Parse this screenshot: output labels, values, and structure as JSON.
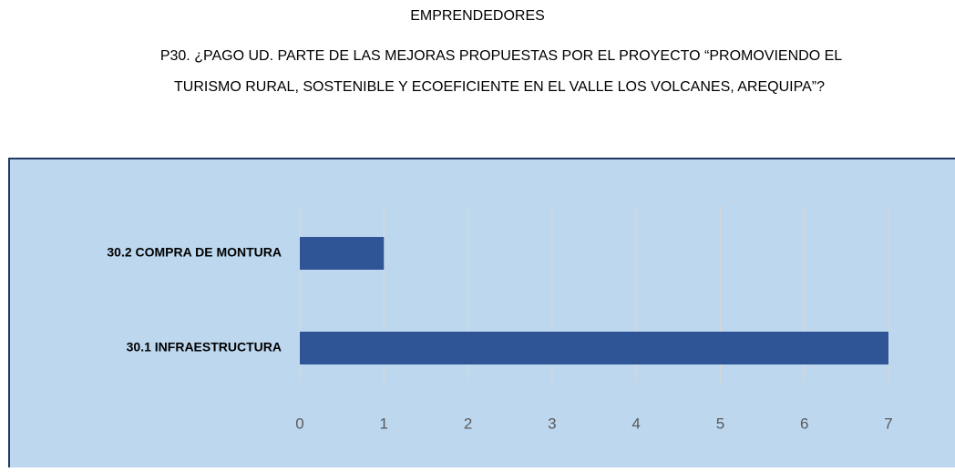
{
  "chart_data": {
    "type": "hbar",
    "heading": "EMPRENDEDORES",
    "title": [
      "P30. ¿PAGO UD. PARTE DE LAS MEJORAS PROPUESTAS POR EL PROYECTO “PROMOVIENDO EL",
      "TURISMO RURAL, SOSTENIBLE Y ECOEFICIENTE EN EL VALLE LOS VOLCANES, AREQUIPA”?"
    ],
    "categories": [
      "30.1 INFRAESTRUCTURA",
      "30.2 COMPRA DE MONTURA"
    ],
    "values": [
      7,
      1
    ],
    "color": "#2f5597",
    "xlim": [
      0,
      7
    ],
    "xticks": [
      0,
      1,
      2,
      3,
      4,
      5,
      6,
      7
    ],
    "grid": true
  }
}
